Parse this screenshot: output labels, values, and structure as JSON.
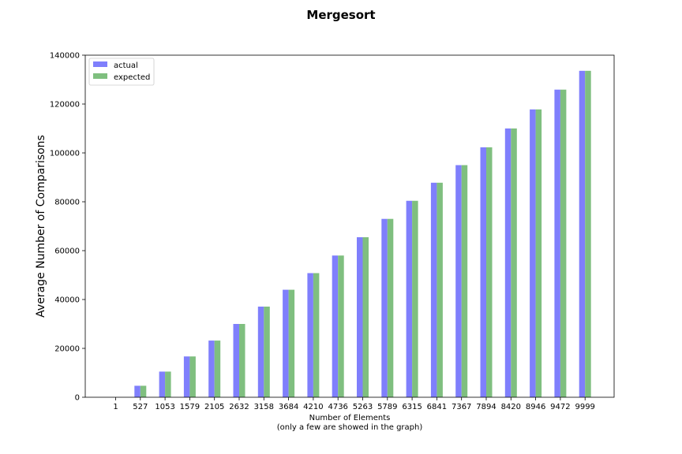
{
  "chart_data": {
    "type": "bar",
    "title": "Mergesort",
    "xlabel": "Number of Elements",
    "xlabel_note": "(only a few are showed in the graph)",
    "ylabel": "Average Number of Comparisons",
    "ylim": [
      0,
      140000
    ],
    "yticks": [
      0,
      20000,
      40000,
      60000,
      80000,
      100000,
      120000,
      140000
    ],
    "categories": [
      "1",
      "527",
      "1053",
      "1579",
      "2105",
      "2632",
      "3158",
      "3684",
      "4210",
      "4736",
      "5263",
      "5789",
      "6315",
      "6841",
      "7367",
      "7894",
      "8420",
      "8946",
      "9472",
      "9999"
    ],
    "series": [
      {
        "name": "actual",
        "color": "#7f7ffc",
        "values": [
          0,
          4700,
          10500,
          16700,
          23200,
          30000,
          37100,
          44000,
          50800,
          58000,
          65500,
          73000,
          80400,
          87800,
          95000,
          102300,
          110000,
          117800,
          125900,
          133600
        ]
      },
      {
        "name": "expected",
        "color": "#7fbf7f",
        "values": [
          0,
          4700,
          10500,
          16700,
          23200,
          30000,
          37100,
          44000,
          50800,
          58000,
          65500,
          73000,
          80400,
          87800,
          95000,
          102300,
          110000,
          117800,
          125900,
          133600
        ]
      }
    ],
    "legend_position": "upper-left",
    "grid": false
  }
}
